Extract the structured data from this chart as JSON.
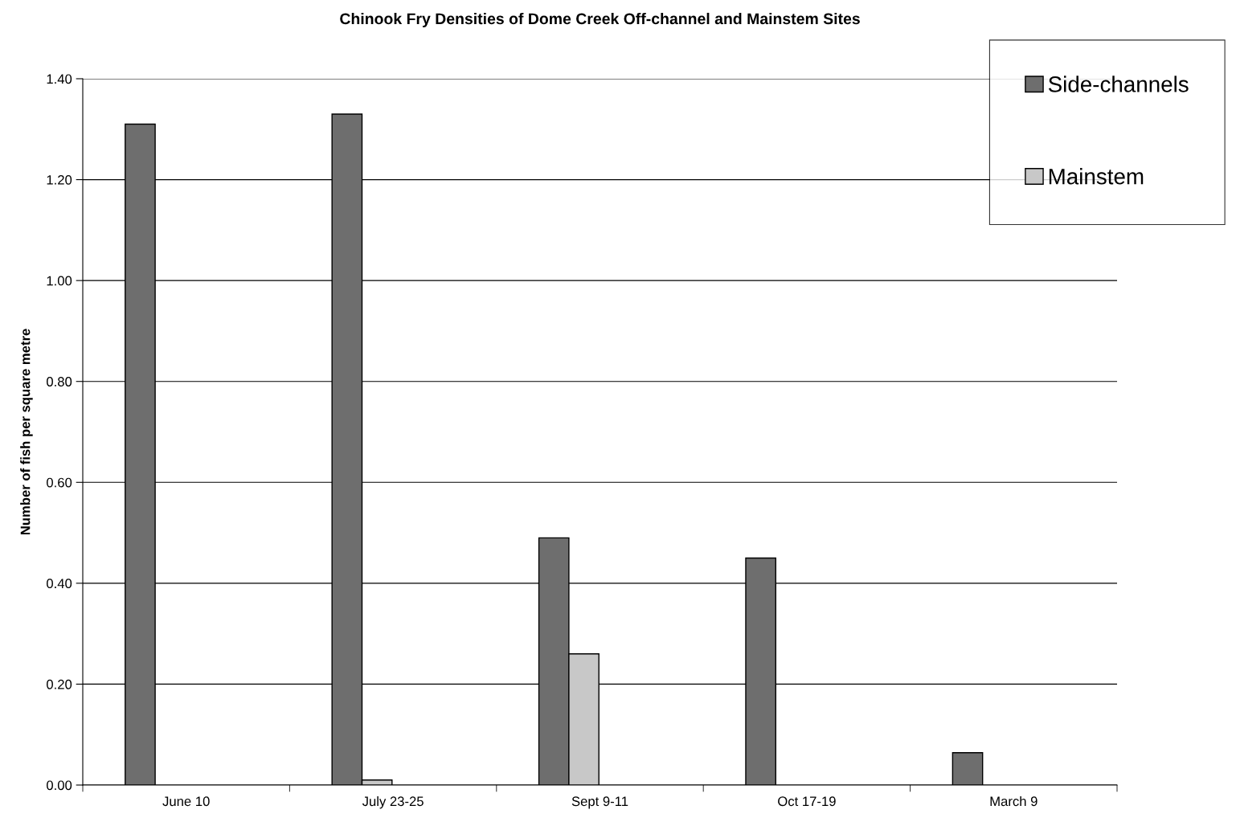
{
  "chart_data": {
    "type": "bar",
    "title": "Chinook Fry Densities of Dome Creek Off-channel and Mainstem Sites",
    "ylabel": "Number of fish per square metre",
    "categories": [
      "June 10",
      "July 23-25",
      "Sept 9-11",
      "Oct 17-19",
      "March 9"
    ],
    "series": [
      {
        "name": "Side-channels",
        "color": "#6e6e6e",
        "values": [
          1.31,
          1.33,
          0.49,
          0.45,
          0.064
        ]
      },
      {
        "name": "Mainstem",
        "color": "#c8c8c8",
        "values": [
          null,
          0.01,
          0.26,
          null,
          null
        ]
      }
    ],
    "ylim": [
      0,
      1.4
    ],
    "yticks": [
      {
        "value": 0,
        "label": "0.00"
      },
      {
        "value": 0.2,
        "label": "0.20"
      },
      {
        "value": 0.4,
        "label": "0.40"
      },
      {
        "value": 0.6,
        "label": "0.60"
      },
      {
        "value": 0.8,
        "label": "0.80"
      },
      {
        "value": 1.0,
        "label": "1.00"
      },
      {
        "value": 1.2,
        "label": "1.20"
      },
      {
        "value": 1.4,
        "label": "1.40"
      }
    ],
    "grid": "y",
    "legend": "top right"
  }
}
